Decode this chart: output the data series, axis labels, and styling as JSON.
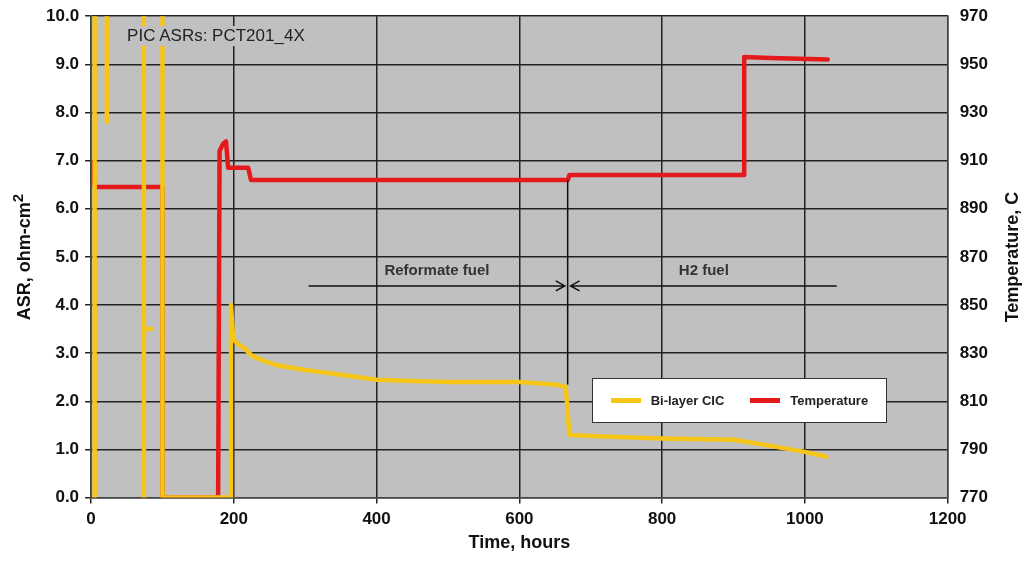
{
  "chart_data": {
    "type": "line",
    "title": "PIC ASRs: PCT201_4X",
    "xlabel": "Time, hours",
    "ylabel": "ASR,  ohm-cm$^{2}$",
    "y2label": "Temperature,  C",
    "xlim": [
      0,
      1200
    ],
    "xticks": [
      0,
      200,
      400,
      600,
      800,
      1000,
      1200
    ],
    "ylim": [
      0,
      10
    ],
    "yticks": [
      {
        "value": 0,
        "label": "0.0"
      },
      {
        "value": 1,
        "label": "1.0"
      },
      {
        "value": 2,
        "label": "2.0"
      },
      {
        "value": 3,
        "label": "3.0"
      },
      {
        "value": 4,
        "label": "4.0"
      },
      {
        "value": 5,
        "label": "5.0"
      },
      {
        "value": 6,
        "label": "6.0"
      },
      {
        "value": 7,
        "label": "7.0"
      },
      {
        "value": 8,
        "label": "8.0"
      },
      {
        "value": 9,
        "label": "9.0"
      },
      {
        "value": 10,
        "label": "10.0"
      }
    ],
    "y2lim": [
      770,
      970
    ],
    "y2ticks": [
      770,
      790,
      810,
      830,
      850,
      870,
      890,
      910,
      930,
      950,
      970
    ],
    "grid": true,
    "legend": "bottom right",
    "marker": "none",
    "line_style": "solid",
    "annotations": [
      "Reformate fuel",
      "H2 fuel"
    ],
    "series": [
      {
        "color": "#f5c518",
        "x": [
          5,
          5
        ],
        "values": [
          10,
          0
        ]
      },
      {
        "color": "#f5c518",
        "x": [
          22,
          22
        ],
        "values": [
          10,
          7.8
        ]
      },
      {
        "color": "#f5c518",
        "x": [
          74,
          74
        ],
        "values": [
          10,
          0
        ]
      },
      {
        "color": "#f5c518",
        "x": [
          74,
          84
        ],
        "values": [
          3.5,
          3.5
        ]
      },
      {
        "name": "Bi-layer CIC",
        "color": "#f5c518",
        "x": [
          100,
          100,
          196,
          196,
          199,
          205,
          215,
          225,
          240,
          260,
          300,
          350,
          400,
          450,
          500,
          550,
          600,
          650,
          665,
          670,
          700,
          800,
          900,
          950,
          1000,
          1030
        ],
        "values": [
          10,
          0,
          0,
          4.0,
          3.3,
          3.2,
          3.1,
          2.95,
          2.85,
          2.75,
          2.65,
          2.55,
          2.45,
          2.42,
          2.4,
          2.4,
          2.4,
          2.35,
          2.3,
          1.3,
          1.28,
          1.23,
          1.2,
          1.08,
          0.95,
          0.85
        ]
      },
      {
        "name": "Temperature",
        "color": "#e3191c",
        "axis": "y2",
        "x": [
          0,
          3,
          5,
          100,
          100,
          178,
          180,
          185,
          189,
          192,
          220,
          224,
          668,
          670,
          915,
          915,
          1032
        ],
        "values": [
          909,
          909,
          899,
          899,
          770,
          770,
          914,
          917,
          918,
          907,
          907,
          902,
          902,
          904,
          904,
          953,
          952
        ]
      }
    ]
  }
}
